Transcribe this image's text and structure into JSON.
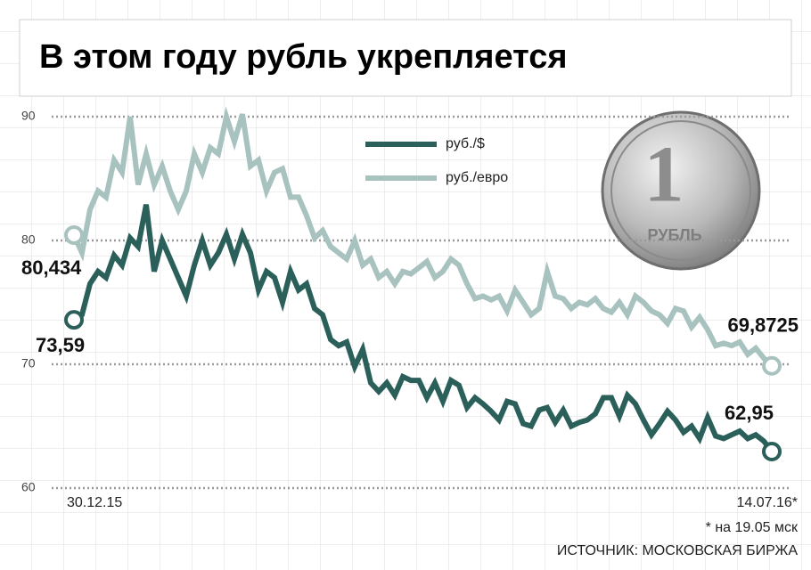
{
  "chart_data": {
    "type": "line",
    "title": "В этом году рубль укрепляется",
    "categories": [
      "30.12.15",
      null,
      null,
      null,
      null,
      null,
      null,
      null,
      null,
      null,
      null,
      null,
      null,
      null,
      null,
      null,
      null,
      null,
      null,
      null,
      null,
      null,
      null,
      null,
      null,
      null,
      null,
      null,
      null,
      null,
      null,
      null,
      null,
      null,
      null,
      null,
      null,
      null,
      null,
      null,
      null,
      null,
      null,
      null,
      null,
      null,
      null,
      null,
      null,
      null,
      null,
      null,
      null,
      null,
      null,
      null,
      null,
      null,
      null,
      null,
      null,
      null,
      null,
      null,
      null,
      null,
      null,
      null,
      null,
      null,
      null,
      null,
      null,
      null,
      null,
      null,
      null,
      null,
      null,
      null,
      null,
      null,
      null,
      null,
      null,
      null,
      null,
      "14.07.16*"
    ],
    "series": [
      {
        "name": "руб./$",
        "color": "#2b5f5a",
        "values": [
          73.59,
          74.0,
          76.5,
          77.5,
          77.0,
          78.8,
          78.0,
          80.2,
          79.5,
          82.9,
          77.5,
          80.0,
          78.5,
          77.0,
          75.5,
          78.0,
          80.0,
          78.0,
          79.0,
          80.5,
          78.5,
          80.5,
          79.0,
          76.0,
          77.5,
          77.0,
          75.0,
          77.5,
          76.0,
          76.5,
          74.5,
          74.0,
          72.0,
          71.5,
          71.8,
          69.8,
          71.2,
          68.5,
          67.8,
          68.5,
          67.5,
          69.0,
          68.7,
          68.7,
          67.3,
          68.5,
          67.0,
          68.7,
          68.3,
          66.5,
          67.3,
          66.8,
          66.2,
          65.5,
          67.0,
          66.8,
          65.2,
          65.0,
          66.3,
          66.5,
          65.3,
          66.3,
          65.0,
          65.3,
          65.5,
          66.0,
          67.3,
          67.3,
          65.8,
          67.5,
          66.8,
          65.5,
          64.3,
          65.2,
          66.2,
          65.5,
          64.5,
          65.0,
          64.0,
          65.7,
          64.2,
          64.0,
          64.3,
          64.6,
          64.0,
          64.3,
          63.8,
          62.95
        ],
        "value_labels": [
          "73,59",
          null,
          null,
          null,
          null,
          null,
          null,
          null,
          null,
          null,
          null,
          null,
          null,
          null,
          null,
          null,
          null,
          null,
          null,
          null,
          null,
          null,
          null,
          null,
          null,
          null,
          null,
          null,
          null,
          null,
          null,
          null,
          null,
          null,
          null,
          null,
          null,
          null,
          null,
          null,
          null,
          null,
          null,
          null,
          null,
          null,
          null,
          null,
          null,
          null,
          null,
          null,
          null,
          null,
          null,
          null,
          null,
          null,
          null,
          null,
          null,
          null,
          null,
          null,
          null,
          null,
          null,
          null,
          null,
          null,
          null,
          null,
          null,
          null,
          null,
          null,
          null,
          null,
          null,
          null,
          null,
          null,
          null,
          null,
          null,
          null,
          null,
          "62,95"
        ]
      },
      {
        "name": "руб./евро",
        "color": "#a8c3bf",
        "values": [
          80.434,
          79.0,
          82.5,
          84.0,
          83.5,
          86.5,
          85.5,
          90.0,
          84.5,
          87.0,
          84.5,
          86.0,
          84.0,
          82.5,
          84.0,
          87.0,
          85.5,
          87.5,
          87.0,
          90.0,
          88.0,
          90.2,
          86.0,
          86.5,
          84.0,
          85.5,
          85.8,
          83.5,
          83.5,
          82.0,
          80.2,
          80.8,
          79.5,
          79.0,
          78.5,
          80.0,
          78.0,
          78.5,
          77.0,
          77.5,
          76.5,
          77.5,
          77.3,
          77.8,
          78.3,
          77.0,
          77.5,
          78.5,
          78.0,
          76.5,
          75.3,
          75.5,
          75.2,
          75.5,
          74.3,
          76.0,
          75.0,
          74.0,
          74.5,
          77.5,
          75.5,
          75.3,
          74.5,
          75.0,
          74.8,
          75.3,
          74.5,
          74.2,
          75.0,
          74.0,
          75.5,
          75.0,
          74.3,
          74.0,
          73.3,
          74.5,
          74.3,
          73.0,
          73.8,
          72.8,
          71.5,
          71.7,
          71.5,
          71.8,
          70.8,
          71.3,
          70.5,
          69.8725
        ],
        "value_labels": [
          "80,434",
          null,
          null,
          null,
          null,
          null,
          null,
          null,
          null,
          null,
          null,
          null,
          null,
          null,
          null,
          null,
          null,
          null,
          null,
          null,
          null,
          null,
          null,
          null,
          null,
          null,
          null,
          null,
          null,
          null,
          null,
          null,
          null,
          null,
          null,
          null,
          null,
          null,
          null,
          null,
          null,
          null,
          null,
          null,
          null,
          null,
          null,
          null,
          null,
          null,
          null,
          null,
          null,
          null,
          null,
          null,
          null,
          null,
          null,
          null,
          null,
          null,
          null,
          null,
          null,
          null,
          null,
          null,
          null,
          null,
          null,
          null,
          null,
          null,
          null,
          null,
          null,
          null,
          null,
          null,
          null,
          null,
          null,
          null,
          null,
          null,
          null,
          "69,8725"
        ]
      }
    ],
    "ylim": [
      60,
      90
    ],
    "yticks": [
      60,
      70,
      80,
      90
    ],
    "grid": true,
    "legend": "top",
    "footnote": "* на 19.05 мск",
    "source": "ИСТОЧНИК: МОСКОВСКАЯ БИРЖА",
    "coin": {
      "denomination": "1",
      "label": "РУБЛЬ"
    }
  }
}
